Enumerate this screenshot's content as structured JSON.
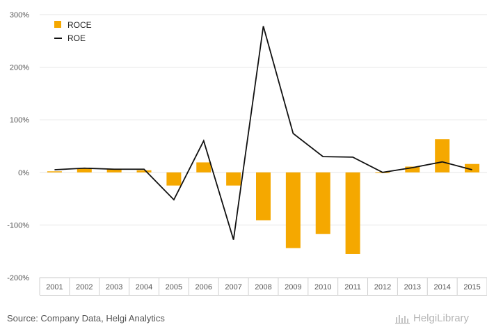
{
  "chart_data": {
    "type": "bar",
    "title": "",
    "xlabel": "",
    "ylabel": "",
    "categories": [
      "2001",
      "2002",
      "2003",
      "2004",
      "2005",
      "2006",
      "2007",
      "2008",
      "2009",
      "2010",
      "2011",
      "2012",
      "2013",
      "2014",
      "2015"
    ],
    "series": [
      {
        "name": "ROCE",
        "type": "bar",
        "color": "#f5a800",
        "values": [
          2,
          7,
          6,
          4,
          -25,
          19,
          -25,
          -91,
          -144,
          -117,
          -155,
          -1,
          11,
          63,
          16
        ]
      },
      {
        "name": "ROE",
        "type": "line",
        "color": "#111111",
        "values": [
          5,
          8,
          6,
          6,
          -52,
          60,
          -128,
          278,
          74,
          30,
          29,
          0,
          9,
          20,
          5
        ]
      }
    ],
    "ylim": [
      -200,
      300
    ],
    "yticks": [
      "300%",
      "200%",
      "100%",
      "0%",
      "-100%",
      "-200%"
    ],
    "ytick_values": [
      300,
      200,
      100,
      0,
      -100,
      -200
    ],
    "grid": true,
    "legend": "top-left"
  },
  "footer": {
    "source": "Source: Company Data, Helgi Analytics",
    "brand": "HelgiLibrary"
  },
  "icons": {
    "brand": "helgi-library-logo-icon"
  }
}
